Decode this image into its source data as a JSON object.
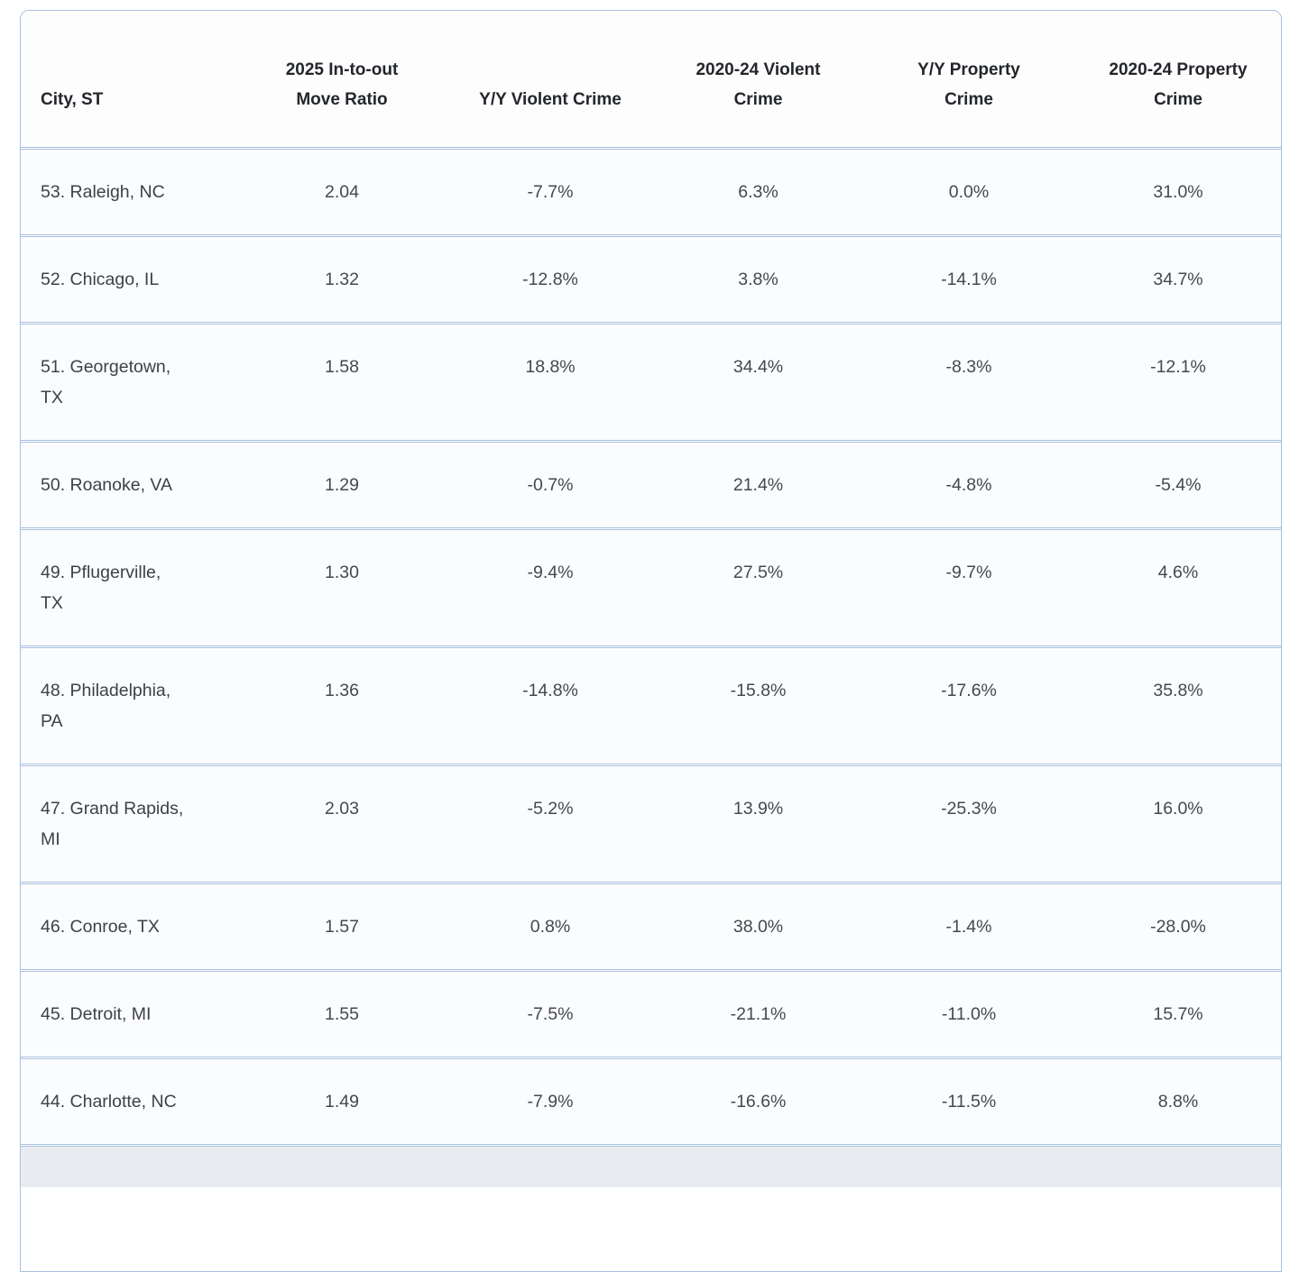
{
  "colors": {
    "page_background": "#ffffff",
    "table_border": "#a8c1de",
    "row_background": "#fbfcfd",
    "header_text": "#23262a",
    "cell_text": "#45484d",
    "partial_row_background": "#e9ecf1"
  },
  "chart_data": {
    "type": "table",
    "title": "",
    "columns": [
      "City, ST",
      "2025 In-to-out Move Ratio",
      "Y/Y Violent Crime",
      "2020-24 Violent Crime",
      "Y/Y Property Crime",
      "2020-24 Property Crime"
    ],
    "rows": [
      [
        "53. Raleigh, NC",
        2.04,
        -7.7,
        6.3,
        0.0,
        31.0
      ],
      [
        "52. Chicago, IL",
        1.32,
        -12.8,
        3.8,
        -14.1,
        34.7
      ],
      [
        "51. Georgetown, TX",
        1.58,
        18.8,
        34.4,
        -8.3,
        -12.1
      ],
      [
        "50. Roanoke, VA",
        1.29,
        -0.7,
        21.4,
        -4.8,
        -5.4
      ],
      [
        "49. Pflugerville, TX",
        1.3,
        -9.4,
        27.5,
        -9.7,
        4.6
      ],
      [
        "48. Philadelphia, PA",
        1.36,
        -14.8,
        -15.8,
        -17.6,
        35.8
      ],
      [
        "47. Grand Rapids, MI",
        2.03,
        -5.2,
        13.9,
        -25.3,
        16.0
      ],
      [
        "46. Conroe, TX",
        1.57,
        0.8,
        38.0,
        -1.4,
        -28.0
      ],
      [
        "45. Detroit, MI",
        1.55,
        -7.5,
        -21.1,
        -11.0,
        15.7
      ],
      [
        "44. Charlotte, NC",
        1.49,
        -7.9,
        -16.6,
        -11.5,
        8.8
      ]
    ],
    "note_units": "crime columns shown as percentages in UI"
  },
  "table": {
    "header": [
      [
        "City, ST"
      ],
      [
        "2025 In-to-out",
        "Move Ratio"
      ],
      [
        "Y/Y Violent Crime"
      ],
      [
        "2020-24 Violent",
        "Crime"
      ],
      [
        "Y/Y Property",
        "Crime"
      ],
      [
        "2020-24 Property",
        "Crime"
      ]
    ],
    "rows": [
      {
        "cells": [
          [
            "53. Raleigh, NC"
          ],
          "2.04",
          "-7.7%",
          "6.3%",
          "0.0%",
          "31.0%"
        ]
      },
      {
        "cells": [
          [
            "52. Chicago, IL"
          ],
          "1.32",
          "-12.8%",
          "3.8%",
          "-14.1%",
          "34.7%"
        ]
      },
      {
        "cells": [
          [
            "51. Georgetown,",
            "TX"
          ],
          "1.58",
          "18.8%",
          "34.4%",
          "-8.3%",
          "-12.1%"
        ]
      },
      {
        "cells": [
          [
            "50. Roanoke, VA"
          ],
          "1.29",
          "-0.7%",
          "21.4%",
          "-4.8%",
          "-5.4%"
        ]
      },
      {
        "cells": [
          [
            "49. Pflugerville,",
            "TX"
          ],
          "1.30",
          "-9.4%",
          "27.5%",
          "-9.7%",
          "4.6%"
        ]
      },
      {
        "cells": [
          [
            "48. Philadelphia,",
            "PA"
          ],
          "1.36",
          "-14.8%",
          "-15.8%",
          "-17.6%",
          "35.8%"
        ]
      },
      {
        "cells": [
          [
            "47. Grand Rapids,",
            "MI"
          ],
          "2.03",
          "-5.2%",
          "13.9%",
          "-25.3%",
          "16.0%"
        ]
      },
      {
        "cells": [
          [
            "46. Conroe, TX"
          ],
          "1.57",
          "0.8%",
          "38.0%",
          "-1.4%",
          "-28.0%"
        ]
      },
      {
        "cells": [
          [
            "45. Detroit, MI"
          ],
          "1.55",
          "-7.5%",
          "-21.1%",
          "-11.0%",
          "15.7%"
        ]
      },
      {
        "cells": [
          [
            "44. Charlotte, NC"
          ],
          "1.49",
          "-7.9%",
          "-16.6%",
          "-11.5%",
          "8.8%"
        ]
      }
    ]
  }
}
